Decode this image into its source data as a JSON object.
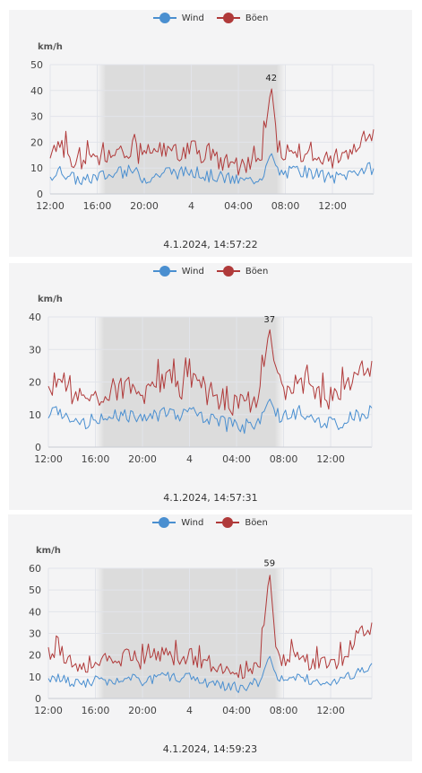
{
  "colors": {
    "wind": "#4a8fd0",
    "gust": "#b03a3a",
    "night": "#dcdcdc",
    "grid": "#e2e4ea",
    "panel": "#f4f4f5"
  },
  "chart_data": [
    {
      "type": "line",
      "legend_position": "top-center",
      "unit": "km/h",
      "series": [
        {
          "name": "Wind",
          "key": "wind"
        },
        {
          "name": "Böen",
          "key": "gust"
        }
      ],
      "yticks": [
        0,
        10,
        20,
        30,
        40,
        50
      ],
      "ylim": [
        0,
        50
      ],
      "xtick_labels": [
        "12:00",
        "16:00",
        "20:00",
        "4",
        "04:00",
        "08:00",
        "12:00"
      ],
      "x_range_hours": [
        0,
        27.5
      ],
      "xtick_hours": [
        0,
        4,
        8,
        12,
        16,
        20,
        24
      ],
      "night_shading_hours": [
        4,
        20
      ],
      "wind_shape": [
        [
          0,
          7
        ],
        [
          1,
          9
        ],
        [
          2,
          6
        ],
        [
          3,
          5
        ],
        [
          4,
          7
        ],
        [
          5,
          7
        ],
        [
          6,
          8
        ],
        [
          7,
          9
        ],
        [
          8,
          6
        ],
        [
          9,
          7
        ],
        [
          10,
          9
        ],
        [
          11,
          8
        ],
        [
          12,
          9
        ],
        [
          13,
          7
        ],
        [
          14,
          7
        ],
        [
          15,
          6
        ],
        [
          16,
          5
        ],
        [
          17,
          5
        ],
        [
          18,
          7
        ],
        [
          18.8,
          16
        ],
        [
          19.4,
          8
        ],
        [
          20,
          8
        ],
        [
          21,
          9
        ],
        [
          22,
          8
        ],
        [
          23,
          7
        ],
        [
          24,
          6
        ],
        [
          25,
          7
        ],
        [
          26,
          9
        ],
        [
          27.5,
          10
        ]
      ],
      "gust_shape": [
        [
          0,
          16
        ],
        [
          1,
          19
        ],
        [
          2,
          11
        ],
        [
          3,
          12
        ],
        [
          4,
          13
        ],
        [
          5,
          14
        ],
        [
          6,
          15
        ],
        [
          7,
          17
        ],
        [
          8,
          14
        ],
        [
          9,
          15
        ],
        [
          10,
          19
        ],
        [
          11,
          16
        ],
        [
          12,
          19
        ],
        [
          13,
          15
        ],
        [
          14,
          14
        ],
        [
          15,
          12
        ],
        [
          16,
          10
        ],
        [
          17,
          11
        ],
        [
          18,
          14
        ],
        [
          18.8,
          42
        ],
        [
          19.4,
          17
        ],
        [
          20,
          15
        ],
        [
          21,
          17
        ],
        [
          22,
          14
        ],
        [
          23,
          12
        ],
        [
          24,
          13
        ],
        [
          25,
          15
        ],
        [
          26,
          20
        ],
        [
          27.5,
          24
        ]
      ],
      "peak_label": "42",
      "peak_value": 42,
      "peak_hour": 18.8,
      "timestamp": "4.1.2024, 14:57:22"
    },
    {
      "type": "line",
      "legend_position": "top-center",
      "unit": "km/h",
      "series": [
        {
          "name": "Wind",
          "key": "wind"
        },
        {
          "name": "Böen",
          "key": "gust"
        }
      ],
      "yticks": [
        0,
        10,
        20,
        30,
        40
      ],
      "ylim": [
        0,
        40
      ],
      "xtick_labels": [
        "12:00",
        "16:00",
        "20:00",
        "4",
        "04:00",
        "08:00",
        "12:00"
      ],
      "x_range_hours": [
        0,
        27.5
      ],
      "xtick_hours": [
        0,
        4,
        8,
        12,
        16,
        20,
        24
      ],
      "night_shading_hours": [
        4,
        20
      ],
      "wind_shape": [
        [
          0,
          9
        ],
        [
          1,
          11
        ],
        [
          2,
          7
        ],
        [
          3,
          8
        ],
        [
          4,
          8
        ],
        [
          5,
          9
        ],
        [
          6,
          10
        ],
        [
          7,
          10
        ],
        [
          8,
          9
        ],
        [
          9,
          10
        ],
        [
          10,
          11
        ],
        [
          11,
          10
        ],
        [
          12,
          11
        ],
        [
          13,
          9
        ],
        [
          14,
          8
        ],
        [
          15,
          7
        ],
        [
          16,
          6
        ],
        [
          17,
          7
        ],
        [
          18,
          8
        ],
        [
          18.8,
          15
        ],
        [
          19.4,
          10
        ],
        [
          20,
          10
        ],
        [
          21,
          11
        ],
        [
          22,
          10
        ],
        [
          23,
          8
        ],
        [
          24,
          7
        ],
        [
          25,
          8
        ],
        [
          26,
          10
        ],
        [
          27.5,
          11
        ]
      ],
      "gust_shape": [
        [
          0,
          18
        ],
        [
          1,
          21
        ],
        [
          2,
          15
        ],
        [
          3,
          15
        ],
        [
          4,
          16
        ],
        [
          5,
          17
        ],
        [
          6,
          18
        ],
        [
          7,
          20
        ],
        [
          8,
          17
        ],
        [
          9,
          18
        ],
        [
          10,
          21
        ],
        [
          11,
          18
        ],
        [
          12,
          20
        ],
        [
          13,
          17
        ],
        [
          14,
          16
        ],
        [
          15,
          14
        ],
        [
          16,
          13
        ],
        [
          17,
          13
        ],
        [
          18,
          16
        ],
        [
          18.8,
          37
        ],
        [
          19.4,
          20
        ],
        [
          20,
          18
        ],
        [
          21,
          20
        ],
        [
          22,
          17
        ],
        [
          23,
          15
        ],
        [
          24,
          15
        ],
        [
          25,
          17
        ],
        [
          26,
          22
        ],
        [
          27.5,
          25
        ]
      ],
      "peak_label": "37",
      "peak_value": 37,
      "peak_hour": 18.8,
      "timestamp": "4.1.2024, 14:57:31"
    },
    {
      "type": "line",
      "legend_position": "top-center",
      "unit": "km/h",
      "series": [
        {
          "name": "Wind",
          "key": "wind"
        },
        {
          "name": "Böen",
          "key": "gust"
        }
      ],
      "yticks": [
        0,
        10,
        20,
        30,
        40,
        50,
        60
      ],
      "ylim": [
        0,
        60
      ],
      "xtick_labels": [
        "12:00",
        "16:00",
        "20:00",
        "4",
        "04:00",
        "08:00",
        "12:00"
      ],
      "x_range_hours": [
        0,
        27.5
      ],
      "xtick_hours": [
        0,
        4,
        8,
        12,
        16,
        20,
        24
      ],
      "night_shading_hours": [
        4,
        20
      ],
      "wind_shape": [
        [
          0,
          9
        ],
        [
          1,
          10
        ],
        [
          2,
          7
        ],
        [
          3,
          7
        ],
        [
          4,
          8
        ],
        [
          5,
          8
        ],
        [
          6,
          9
        ],
        [
          7,
          10
        ],
        [
          8,
          8
        ],
        [
          9,
          9
        ],
        [
          10,
          10
        ],
        [
          11,
          9
        ],
        [
          12,
          10
        ],
        [
          13,
          8
        ],
        [
          14,
          7
        ],
        [
          15,
          6
        ],
        [
          16,
          5
        ],
        [
          17,
          6
        ],
        [
          18,
          8
        ],
        [
          18.8,
          20
        ],
        [
          19.4,
          9
        ],
        [
          20,
          9
        ],
        [
          21,
          10
        ],
        [
          22,
          9
        ],
        [
          23,
          7
        ],
        [
          24,
          8
        ],
        [
          25,
          9
        ],
        [
          26,
          12
        ],
        [
          27.5,
          14
        ]
      ],
      "gust_shape": [
        [
          0,
          20
        ],
        [
          1,
          22
        ],
        [
          2,
          15
        ],
        [
          3,
          16
        ],
        [
          4,
          16
        ],
        [
          5,
          17
        ],
        [
          6,
          18
        ],
        [
          7,
          20
        ],
        [
          8,
          17
        ],
        [
          9,
          18
        ],
        [
          10,
          22
        ],
        [
          11,
          18
        ],
        [
          12,
          20
        ],
        [
          13,
          17
        ],
        [
          14,
          16
        ],
        [
          15,
          13
        ],
        [
          16,
          12
        ],
        [
          17,
          13
        ],
        [
          18,
          16
        ],
        [
          18.8,
          59
        ],
        [
          19.4,
          20
        ],
        [
          20,
          18
        ],
        [
          21,
          20
        ],
        [
          22,
          17
        ],
        [
          23,
          15
        ],
        [
          24,
          16
        ],
        [
          25,
          19
        ],
        [
          26,
          27
        ],
        [
          27.5,
          33
        ]
      ],
      "peak_label": "59",
      "peak_value": 59,
      "peak_hour": 18.8,
      "timestamp": "4.1.2024, 14:59:23"
    }
  ]
}
